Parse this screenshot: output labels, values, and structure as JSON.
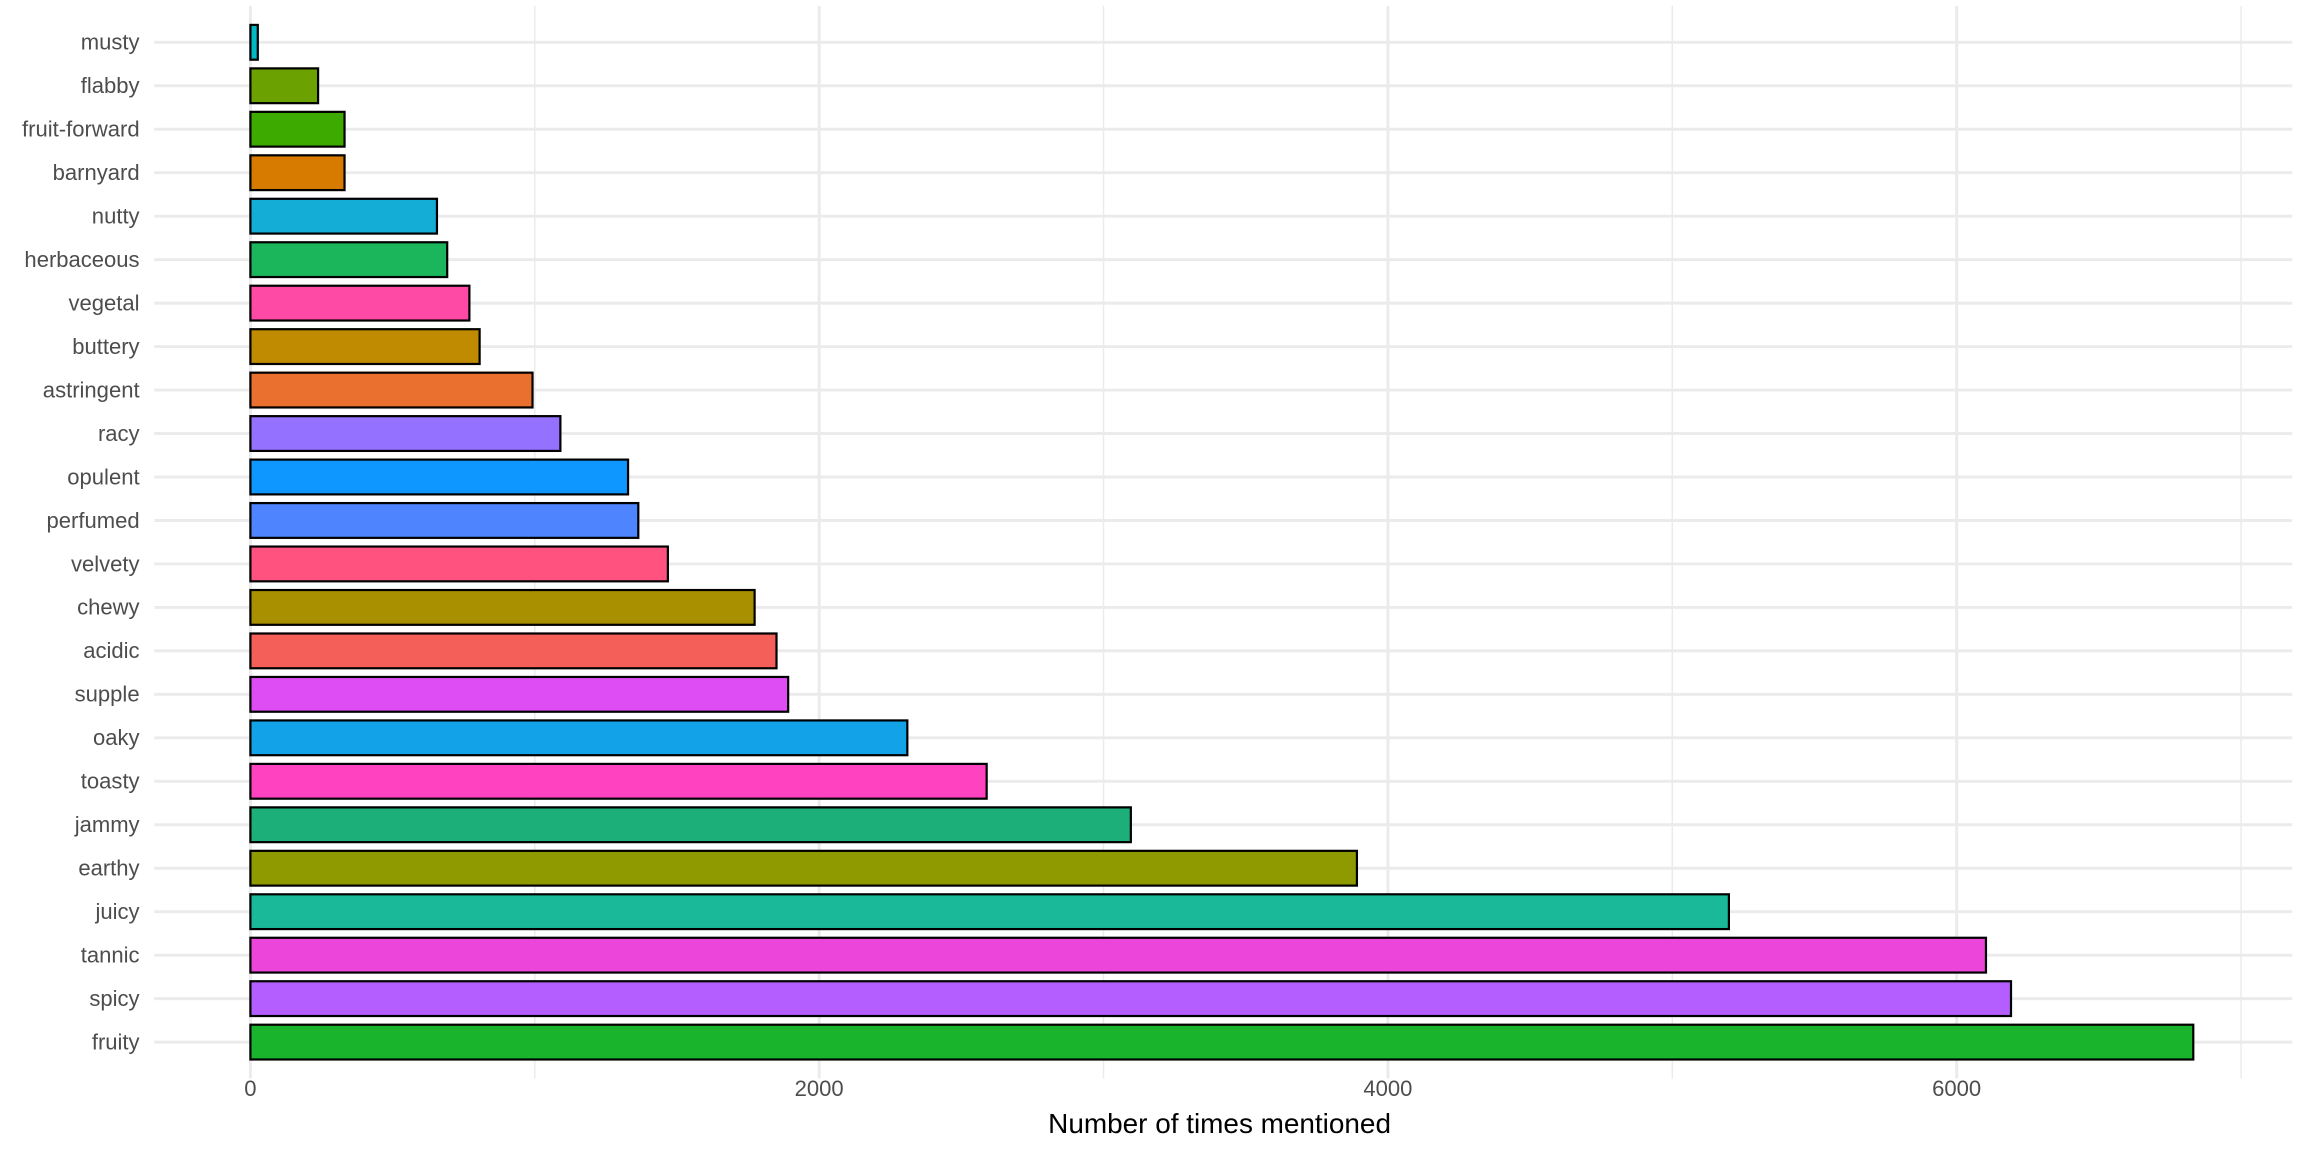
{
  "chart_data": {
    "type": "bar",
    "orientation": "horizontal",
    "title": "",
    "xlabel": "Number of times mentioned",
    "ylabel": "",
    "xlim": [
      -338,
      7180
    ],
    "xticks": [
      0,
      2000,
      4000,
      6000
    ],
    "xtick_labels": [
      "0",
      "2000",
      "4000",
      "6000"
    ],
    "grid": true,
    "legend": "none",
    "categories": [
      "musty",
      "flabby",
      "fruit-forward",
      "barnyard",
      "nutty",
      "herbaceous",
      "vegetal",
      "buttery",
      "astringent",
      "racy",
      "opulent",
      "perfumed",
      "velvety",
      "chewy",
      "acidic",
      "supple",
      "oaky",
      "toasty",
      "jammy",
      "earthy",
      "juicy",
      "tannic",
      "spicy",
      "fruity"
    ],
    "values": [
      26,
      238,
      331,
      331,
      656,
      692,
      770,
      806,
      992,
      1090,
      1328,
      1364,
      1468,
      1773,
      1850,
      1891,
      2310,
      2589,
      3096,
      3891,
      5199,
      6103,
      6191,
      6832
    ],
    "colors": [
      "#00B8C4",
      "#6BA100",
      "#3DAA00",
      "#D77A00",
      "#14ADD6",
      "#1BB55C",
      "#FF4AA5",
      "#C08B00",
      "#E9702F",
      "#9471FF",
      "#0E97FF",
      "#4F84FF",
      "#FF527E",
      "#A89000",
      "#F55F5A",
      "#DE4CF4",
      "#12A2E8",
      "#FF42C0",
      "#1CAF7A",
      "#8F9900",
      "#19B99A",
      "#EC45DA",
      "#B55EFF",
      "#1AB32C"
    ],
    "bar_outline": "#000000"
  }
}
